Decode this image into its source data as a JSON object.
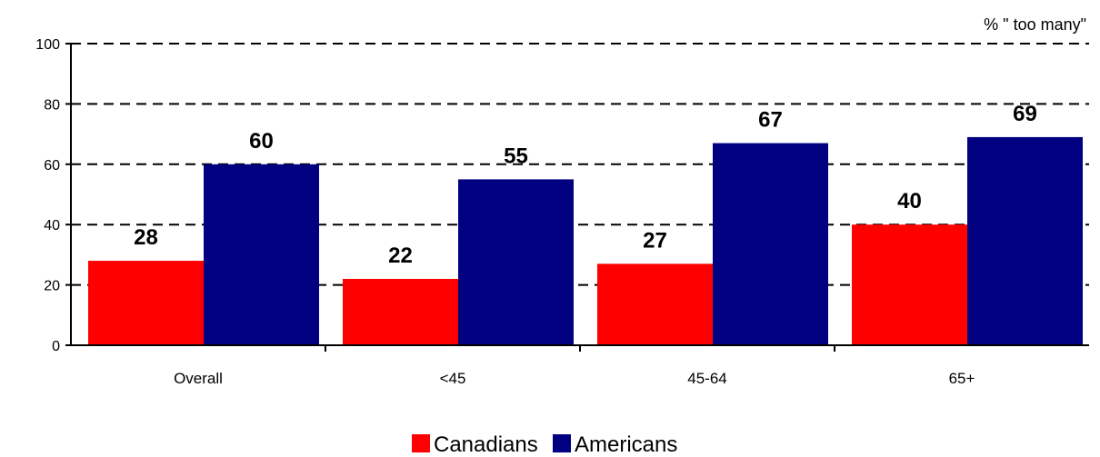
{
  "chart_data": {
    "type": "bar",
    "unit_label": "% \" too many\"",
    "categories": [
      "Overall",
      "<45",
      "45-64",
      "65+"
    ],
    "series": [
      {
        "name": "Canadians",
        "values": [
          28,
          22,
          27,
          40
        ],
        "color": "#ff0000"
      },
      {
        "name": "Americans",
        "values": [
          60,
          55,
          67,
          69
        ],
        "color": "#000080"
      }
    ],
    "ylim": [
      0,
      100
    ],
    "yticks": [
      "0",
      "20",
      "40",
      "60",
      "80",
      "100"
    ],
    "grid": "dashed horizontal",
    "legend_position": "bottom"
  }
}
